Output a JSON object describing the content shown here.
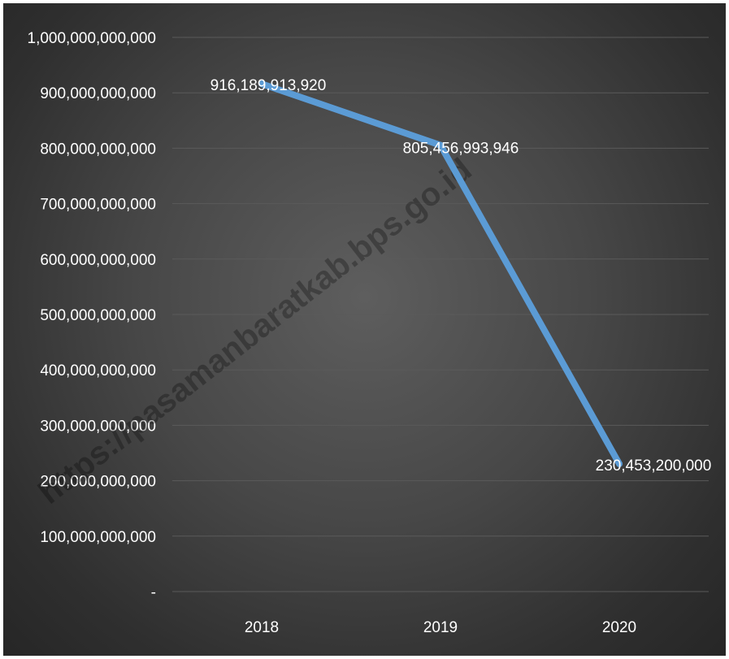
{
  "watermark": "https://pasamanbaratkab.bps.go.id",
  "chart_data": {
    "type": "line",
    "title": "",
    "xlabel": "",
    "ylabel": "",
    "categories": [
      "2018",
      "2019",
      "2020"
    ],
    "series": [
      {
        "values": [
          916189913920,
          805456993946,
          230453200000
        ],
        "color": "#5b9bd5"
      }
    ],
    "data_labels": [
      "916,189,913,920",
      "805,456,993,946",
      "230,453,200,000"
    ],
    "ylim": [
      0,
      1000000000000
    ],
    "y_ticks": [
      {
        "value": 0,
        "label": "-"
      },
      {
        "value": 100000000000,
        "label": "100,000,000,000"
      },
      {
        "value": 200000000000,
        "label": "200,000,000,000"
      },
      {
        "value": 300000000000,
        "label": "300,000,000,000"
      },
      {
        "value": 400000000000,
        "label": "400,000,000,000"
      },
      {
        "value": 500000000000,
        "label": "500,000,000,000"
      },
      {
        "value": 600000000000,
        "label": "600,000,000,000"
      },
      {
        "value": 700000000000,
        "label": "700,000,000,000"
      },
      {
        "value": 800000000000,
        "label": "800,000,000,000"
      },
      {
        "value": 900000000000,
        "label": "900,000,000,000"
      },
      {
        "value": 1000000000000,
        "label": "1,000,000,000,000"
      }
    ],
    "grid": true,
    "legend": "none",
    "background": "#3a3a3a",
    "gridline_color": "#5a5a5a"
  }
}
